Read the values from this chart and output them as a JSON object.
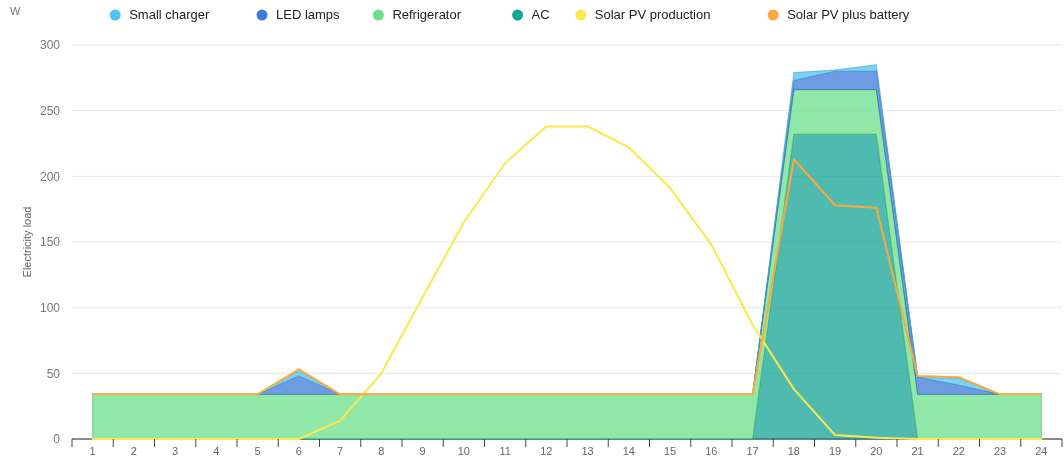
{
  "chart_data": {
    "type": "area",
    "stacked": true,
    "ylabel": "Electricity load",
    "annotations": [
      "W"
    ],
    "x": [
      1,
      2,
      3,
      4,
      5,
      6,
      7,
      8,
      9,
      10,
      11,
      12,
      13,
      14,
      15,
      16,
      17,
      18,
      19,
      20,
      21,
      22,
      23,
      24
    ],
    "xlim": [
      0.5,
      24.5
    ],
    "xticks": [
      {
        "value": 0.5,
        "label": null
      },
      1,
      {
        "value": 1.5,
        "label": null
      },
      2,
      {
        "value": 2.5,
        "label": null
      },
      3,
      {
        "value": 3.5,
        "label": null
      },
      4,
      {
        "value": 4.5,
        "label": null
      },
      5,
      {
        "value": 5.5,
        "label": null
      },
      6,
      {
        "value": 6.5,
        "label": null
      },
      7,
      {
        "value": 7.5,
        "label": null
      },
      8,
      {
        "value": 8.5,
        "label": null
      },
      9,
      {
        "value": 9.5,
        "label": null
      },
      10,
      {
        "value": 10.5,
        "label": null
      },
      11,
      {
        "value": 11.5,
        "label": null
      },
      12,
      {
        "value": 12.5,
        "label": null
      },
      13,
      {
        "value": 13.5,
        "label": null
      },
      14,
      {
        "value": 14.5,
        "label": null
      },
      15,
      {
        "value": 15.5,
        "label": null
      },
      16,
      {
        "value": 16.5,
        "label": null
      },
      17,
      {
        "value": 17.5,
        "label": null
      },
      18,
      {
        "value": 18.5,
        "label": null
      },
      19,
      {
        "value": 19.5,
        "label": null
      },
      20,
      {
        "value": 20.5,
        "label": null
      },
      21,
      {
        "value": 21.5,
        "label": null
      },
      22,
      {
        "value": 22.5,
        "label": null
      },
      23,
      {
        "value": 23.5,
        "label": null
      },
      24,
      {
        "value": 24.5,
        "label": null
      }
    ],
    "ylim": [
      0,
      300
    ],
    "yticks": [
      0,
      50,
      100,
      150,
      200,
      250,
      300
    ],
    "grid": "y",
    "legend": "top",
    "series": [
      {
        "name": "AC",
        "color": "#14a394",
        "values": [
          0,
          0,
          0,
          0,
          0,
          0,
          0,
          0,
          0,
          0,
          0,
          0,
          0,
          0,
          0,
          0,
          0,
          232,
          232,
          232,
          0,
          0,
          0,
          0
        ]
      },
      {
        "name": "Refrigerator",
        "color": "#69e08a",
        "values": [
          34,
          34,
          34,
          34,
          34,
          34,
          34,
          34,
          34,
          34,
          34,
          34,
          34,
          34,
          34,
          34,
          34,
          34,
          34,
          34,
          34,
          34,
          34,
          34
        ]
      },
      {
        "name": "LED lamps",
        "color": "#3f7ad8",
        "values": [
          0,
          0,
          0,
          0,
          0,
          14,
          0,
          0,
          0,
          0,
          0,
          0,
          0,
          0,
          0,
          0,
          0,
          7,
          14,
          14,
          13,
          7,
          0,
          0
        ]
      },
      {
        "name": "Small charger",
        "color": "#4fc3f7",
        "values": [
          0,
          0,
          0,
          0,
          0,
          4,
          0,
          0,
          0,
          0,
          0,
          0,
          0,
          0,
          0,
          0,
          0,
          6,
          1,
          5,
          0,
          5,
          0,
          0
        ]
      },
      {
        "name": "Solar PV production",
        "type": "line",
        "color": "#fde74c",
        "values": [
          0,
          0,
          0,
          0,
          0,
          0,
          14,
          50,
          108,
          165,
          210,
          238,
          238,
          222,
          191,
          148,
          87,
          38,
          3,
          1,
          0,
          0,
          0,
          0
        ]
      },
      {
        "name": "Solar PV plus battery",
        "type": "line",
        "color": "#f9a93d",
        "values": [
          34,
          34,
          34,
          34,
          34,
          53,
          34,
          34,
          34,
          34,
          34,
          34,
          34,
          34,
          34,
          34,
          34,
          213,
          178,
          176,
          48,
          47,
          34,
          34
        ]
      }
    ]
  }
}
